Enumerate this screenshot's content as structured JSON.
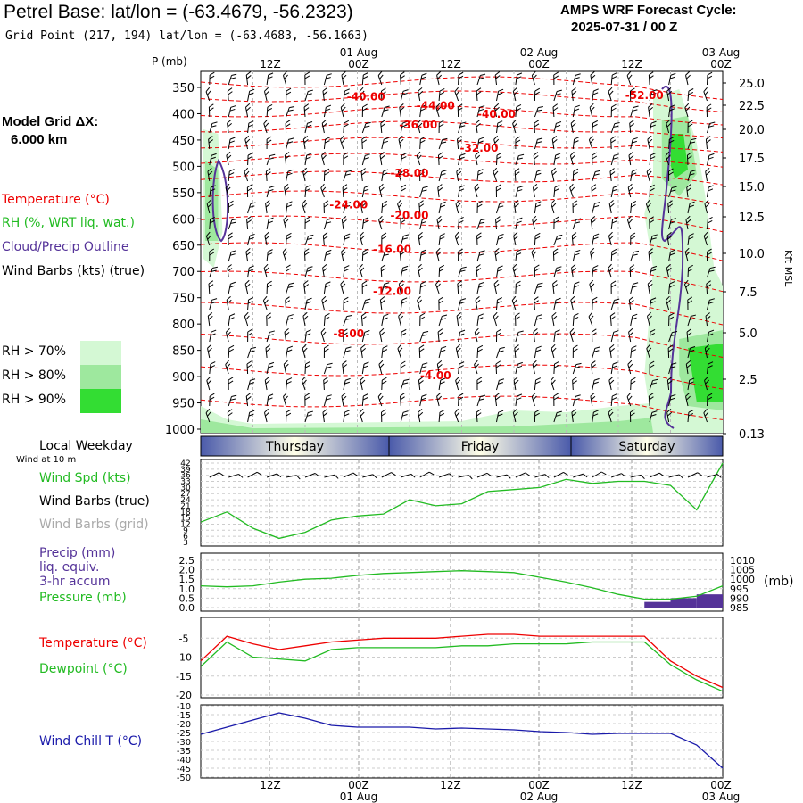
{
  "header": {
    "title": "Petrel Base:  lat/lon = (-63.4679, -56.2323)",
    "subtitle": "Grid Point (217, 194) lat/lon = (-63.4683, -56.1663)",
    "cycle_label": "AMPS WRF Forecast Cycle:",
    "cycle_value": "2025-07-31 / 00  Z",
    "grid_label": "Model Grid ΔX:",
    "grid_value": "6.000 km"
  },
  "legend": {
    "temperature": "Temperature (°C)",
    "rh": "RH (%, WRT liq. wat.)",
    "cloud": "Cloud/Precip Outline",
    "barbs": "Wind Barbs (kts) (true)",
    "rh70": "RH > 70%",
    "rh80": "RH > 80%",
    "rh90": "RH > 90%",
    "colors": {
      "rh70": "#d4f8d4",
      "rh80": "#9ee89e",
      "rh90": "#33dd33",
      "temperature": "#ee0000",
      "cloud": "#553399"
    }
  },
  "time_axis": {
    "top_dates": [
      "01 Aug",
      "02 Aug",
      "03 Aug"
    ],
    "tick_labels": [
      "12Z",
      "00Z",
      "12Z",
      "00Z",
      "12Z",
      "00Z"
    ],
    "bottom_dates": [
      "01 Aug",
      "02 Aug",
      "03 Aug"
    ]
  },
  "weekday": {
    "label": "Local Weekday",
    "wind_note": "Wind at 10 m",
    "days": [
      "Thursday",
      "Friday",
      "Saturday"
    ]
  },
  "panels": {
    "wind": {
      "spd": "Wind Spd (kts)",
      "barbs_true": "Wind Barbs (true)",
      "barbs_grid": "Wind Barbs (grid)"
    },
    "precip": {
      "precip": "Precip (mm)",
      "liq": "liq. equiv.",
      "accum": "3-hr accum",
      "pressure": "Pressure (mb)",
      "mb_unit": "(mb)"
    },
    "temp": {
      "temperature": "Temperature (°C)",
      "dewpoint": "Dewpoint (°C)"
    },
    "windchill": {
      "label": "Wind Chill T (°C)"
    }
  },
  "chart_data": [
    {
      "type": "heatmap",
      "name": "vertical-cross-section",
      "yaxis_left_label": "P (mb)",
      "yaxis_left_ticks": [
        350,
        400,
        450,
        500,
        550,
        600,
        650,
        700,
        750,
        800,
        850,
        900,
        950,
        1000
      ],
      "yaxis_right_label": "Kft MSL",
      "yaxis_right_ticks": [
        "25.0",
        "22.5",
        "20.0",
        "17.5",
        "15.0",
        "12.5",
        "10.0",
        "7.5",
        "5.0",
        "2.5",
        "0.13"
      ],
      "temperature_contour_labels": [
        {
          "label": "-40.00",
          "time_h": 19,
          "p": 375
        },
        {
          "label": "-44.00",
          "time_h": 27,
          "p": 392
        },
        {
          "label": "-40.00",
          "time_h": 34,
          "p": 408
        },
        {
          "label": "-52.00",
          "time_h": 51,
          "p": 372
        },
        {
          "label": "-36.00",
          "time_h": 25,
          "p": 428
        },
        {
          "label": "-32.00",
          "time_h": 32,
          "p": 472
        },
        {
          "label": "-28.00",
          "time_h": 24,
          "p": 520
        },
        {
          "label": "-24.00",
          "time_h": 17,
          "p": 580
        },
        {
          "label": "-20.00",
          "time_h": 24,
          "p": 600
        },
        {
          "label": "-16.00",
          "time_h": 22,
          "p": 665
        },
        {
          "label": "-12.00",
          "time_h": 22,
          "p": 745
        },
        {
          "label": "-8.00",
          "time_h": 17,
          "p": 825
        },
        {
          "label": "-4.00",
          "time_h": 27,
          "p": 905
        }
      ]
    },
    {
      "type": "line",
      "name": "wind-speed",
      "ylabel": "Wind Spd (kts)",
      "yticks": [
        3,
        6,
        9,
        12,
        15,
        18,
        21,
        24,
        27,
        30,
        33,
        36,
        39,
        42
      ],
      "ylim": [
        3,
        42
      ],
      "x": [
        0,
        3,
        6,
        9,
        12,
        15,
        18,
        21,
        24,
        27,
        30,
        33,
        36,
        39,
        42,
        45,
        48,
        51,
        54,
        57,
        60
      ],
      "values": [
        13,
        18,
        10,
        5,
        8,
        14,
        16,
        17,
        24,
        21,
        22,
        28,
        29,
        30,
        34,
        32,
        33,
        33,
        31,
        19,
        42
      ]
    },
    {
      "type": "line",
      "name": "precip-pressure",
      "ylim_left": [
        0,
        2.5
      ],
      "yticks_left": [
        "0.0",
        "0.5",
        "1.0",
        "1.5",
        "2.0",
        "2.5"
      ],
      "ylim_right": [
        985,
        1010
      ],
      "yticks_right": [
        "985",
        "990",
        "995",
        "1000",
        "1005",
        "1010"
      ],
      "x": [
        0,
        3,
        6,
        9,
        12,
        15,
        18,
        21,
        24,
        27,
        30,
        33,
        36,
        39,
        42,
        45,
        48,
        51,
        54,
        57,
        60
      ],
      "pressure": [
        996.5,
        996,
        996.5,
        998.5,
        1000,
        1000.5,
        1002,
        1003,
        1003.5,
        1004,
        1004.5,
        1004,
        1003.5,
        1001,
        998.5,
        995.5,
        992,
        989.5,
        989.5,
        991,
        996.5
      ],
      "precip_bars": [
        {
          "x_start": 51,
          "x_end": 54,
          "value": 0.3
        },
        {
          "x_start": 54,
          "x_end": 57,
          "value": 0.5
        },
        {
          "x_start": 57,
          "x_end": 60,
          "value": 0.7
        }
      ]
    },
    {
      "type": "line",
      "name": "temperature-dewpoint",
      "ylim": [
        -20,
        0
      ],
      "yticks": [
        -5,
        -10,
        -15,
        -20
      ],
      "x": [
        0,
        3,
        6,
        9,
        12,
        15,
        18,
        21,
        24,
        27,
        30,
        33,
        36,
        39,
        42,
        45,
        48,
        51,
        54,
        57,
        60
      ],
      "series": [
        {
          "name": "Temperature (°C)",
          "values": [
            -11,
            -4.5,
            -6.5,
            -8,
            -7,
            -6,
            -5.5,
            -5,
            -5,
            -5,
            -4.5,
            -4,
            -4,
            -4.5,
            -4.5,
            -4.5,
            -4.5,
            -4.5,
            -11,
            -15,
            -18
          ]
        },
        {
          "name": "Dewpoint (°C)",
          "values": [
            -12.5,
            -6,
            -10,
            -10.5,
            -11,
            -8,
            -7.5,
            -7.5,
            -7.5,
            -7.5,
            -7,
            -7,
            -6.5,
            -6.5,
            -6.5,
            -6,
            -6,
            -6,
            -12,
            -16,
            -19
          ]
        }
      ]
    },
    {
      "type": "line",
      "name": "wind-chill",
      "ylim": [
        -50,
        -10
      ],
      "yticks": [
        -10,
        -15,
        -20,
        -25,
        -30,
        -35,
        -40,
        -45,
        -50
      ],
      "x": [
        0,
        3,
        6,
        9,
        12,
        15,
        18,
        21,
        24,
        27,
        30,
        33,
        36,
        39,
        42,
        45,
        48,
        51,
        54,
        57,
        60
      ],
      "values": [
        -26,
        -22,
        -18,
        -14,
        -17,
        -21,
        -22,
        -22,
        -22,
        -23,
        -22.5,
        -23,
        -23.5,
        -24.5,
        -25,
        -26,
        -25.5,
        -25.5,
        -25.5,
        -32,
        -45
      ]
    }
  ]
}
